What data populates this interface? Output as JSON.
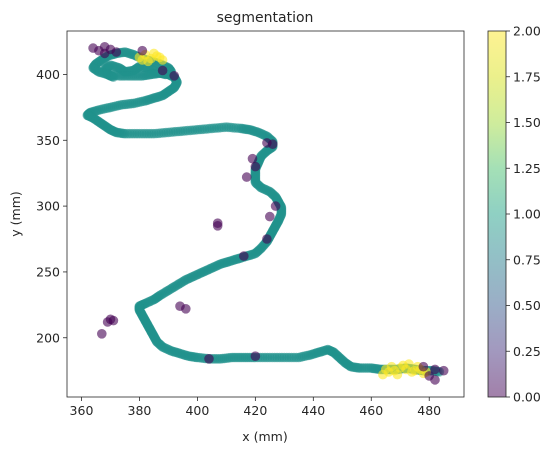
{
  "chart_data": {
    "type": "scatter",
    "title": "segmentation",
    "xlabel": "x (mm)",
    "ylabel": "y (mm)",
    "xlim": [
      355,
      492
    ],
    "ylim": [
      155,
      433
    ],
    "xticks": [
      360,
      380,
      400,
      420,
      440,
      460,
      480
    ],
    "yticks": [
      200,
      250,
      300,
      350,
      400
    ],
    "colorbar": {
      "range": [
        0.0,
        2.0
      ],
      "ticks": [
        "0.00",
        "0.25",
        "0.50",
        "0.75",
        "1.00",
        "1.25",
        "1.50",
        "1.75",
        "2.00"
      ],
      "colormap": "viridis",
      "alpha": 0.5
    },
    "series_colors": {
      "0": "#440154",
      "1": "#21918c",
      "2": "#fde725"
    },
    "path": [
      [
        371,
        398
      ],
      [
        369,
        400
      ],
      [
        368,
        404
      ],
      [
        370,
        407
      ],
      [
        373,
        405
      ],
      [
        375,
        402
      ],
      [
        378,
        403
      ],
      [
        380,
        406
      ],
      [
        383,
        405
      ],
      [
        386,
        402
      ],
      [
        389,
        400
      ],
      [
        391,
        402
      ],
      [
        390,
        405
      ],
      [
        387,
        408
      ],
      [
        384,
        410
      ],
      [
        381,
        412
      ],
      [
        378,
        415
      ],
      [
        375,
        417
      ],
      [
        372,
        416
      ],
      [
        369,
        414
      ],
      [
        367,
        411
      ],
      [
        365,
        408
      ],
      [
        364,
        405
      ],
      [
        366,
        402
      ],
      [
        369,
        400
      ],
      [
        373,
        399
      ],
      [
        377,
        399
      ],
      [
        381,
        399
      ],
      [
        384,
        400
      ],
      [
        387,
        401
      ],
      [
        390,
        400
      ],
      [
        392,
        398
      ],
      [
        393,
        394
      ],
      [
        392,
        390
      ],
      [
        390,
        387
      ],
      [
        388,
        384
      ],
      [
        385,
        382
      ],
      [
        382,
        380
      ],
      [
        378,
        378
      ],
      [
        374,
        377
      ],
      [
        370,
        375
      ],
      [
        366,
        373
      ],
      [
        363,
        371
      ],
      [
        362,
        369
      ],
      [
        364,
        367
      ],
      [
        366,
        364
      ],
      [
        368,
        361
      ],
      [
        370,
        358
      ],
      [
        372,
        356
      ],
      [
        375,
        355
      ],
      [
        380,
        355
      ],
      [
        385,
        355
      ],
      [
        390,
        356
      ],
      [
        395,
        357
      ],
      [
        400,
        358
      ],
      [
        405,
        359
      ],
      [
        410,
        360
      ],
      [
        415,
        359
      ],
      [
        418,
        358
      ],
      [
        421,
        356
      ],
      [
        424,
        353
      ],
      [
        426,
        349
      ],
      [
        426,
        345
      ],
      [
        424,
        342
      ],
      [
        422,
        338
      ],
      [
        421,
        333
      ],
      [
        420,
        328
      ],
      [
        420,
        323
      ],
      [
        420,
        318
      ],
      [
        422,
        314
      ],
      [
        425,
        311
      ],
      [
        427,
        307
      ],
      [
        428,
        303
      ],
      [
        429,
        299
      ],
      [
        429,
        294
      ],
      [
        428,
        289
      ],
      [
        427,
        285
      ],
      [
        426,
        281
      ],
      [
        425,
        277
      ],
      [
        424,
        273
      ],
      [
        422,
        268
      ],
      [
        420,
        264
      ],
      [
        417,
        262
      ],
      [
        414,
        260
      ],
      [
        411,
        258
      ],
      [
        408,
        256
      ],
      [
        405,
        253
      ],
      [
        402,
        250
      ],
      [
        399,
        247
      ],
      [
        396,
        244
      ],
      [
        393,
        240
      ],
      [
        390,
        236
      ],
      [
        387,
        232
      ],
      [
        385,
        229
      ],
      [
        382,
        226
      ],
      [
        380,
        224
      ],
      [
        380,
        221
      ],
      [
        381,
        217
      ],
      [
        382,
        213
      ],
      [
        383,
        209
      ],
      [
        384,
        205
      ],
      [
        385,
        201
      ],
      [
        386,
        197
      ],
      [
        388,
        193
      ],
      [
        391,
        190
      ],
      [
        394,
        188
      ],
      [
        397,
        186
      ],
      [
        400,
        185
      ],
      [
        404,
        184
      ],
      [
        408,
        184
      ],
      [
        412,
        185
      ],
      [
        416,
        185
      ],
      [
        420,
        185
      ],
      [
        425,
        185
      ],
      [
        430,
        185
      ],
      [
        435,
        185
      ],
      [
        439,
        187
      ],
      [
        442,
        189
      ],
      [
        445,
        191
      ],
      [
        447,
        189
      ],
      [
        449,
        185
      ],
      [
        451,
        181
      ],
      [
        453,
        178
      ],
      [
        456,
        177
      ],
      [
        460,
        177
      ],
      [
        463,
        176
      ],
      [
        466,
        176
      ],
      [
        469,
        176
      ],
      [
        472,
        177
      ],
      [
        475,
        176
      ],
      [
        478,
        175
      ],
      [
        481,
        175
      ],
      [
        484,
        174
      ]
    ],
    "segments": [
      {
        "label": 2,
        "points": [
          [
            380,
            413
          ],
          [
            382,
            415
          ],
          [
            384,
            412
          ],
          [
            386,
            414
          ],
          [
            388,
            411
          ],
          [
            383,
            410
          ],
          [
            385,
            416
          ],
          [
            381,
            411
          ],
          [
            387,
            413
          ],
          [
            464,
            172
          ],
          [
            466,
            174
          ],
          [
            468,
            175
          ],
          [
            470,
            177
          ],
          [
            472,
            176
          ],
          [
            474,
            174
          ],
          [
            476,
            178
          ],
          [
            478,
            173
          ],
          [
            471,
            179
          ],
          [
            469,
            172
          ],
          [
            473,
            180
          ],
          [
            475,
            175
          ],
          [
            467,
            178
          ],
          [
            477,
            176
          ],
          [
            465,
            176
          ],
          [
            479,
            174
          ]
        ]
      },
      {
        "label": 0,
        "points": [
          [
            364,
            420
          ],
          [
            366,
            418
          ],
          [
            368,
            416
          ],
          [
            370,
            419
          ],
          [
            372,
            417
          ],
          [
            368,
            421
          ],
          [
            381,
            418
          ],
          [
            388,
            403
          ],
          [
            392,
            399
          ],
          [
            407,
            287
          ],
          [
            407,
            285
          ],
          [
            424,
            348
          ],
          [
            426,
            347
          ],
          [
            419,
            336
          ],
          [
            420,
            330
          ],
          [
            417,
            322
          ],
          [
            427,
            300
          ],
          [
            425,
            292
          ],
          [
            424,
            275
          ],
          [
            416,
            262
          ],
          [
            394,
            224
          ],
          [
            396,
            222
          ],
          [
            404,
            184
          ],
          [
            420,
            186
          ],
          [
            370,
            214
          ],
          [
            369,
            212
          ],
          [
            371,
            213
          ],
          [
            367,
            203
          ],
          [
            482,
            168
          ],
          [
            480,
            171
          ],
          [
            478,
            178
          ],
          [
            482,
            176
          ],
          [
            485,
            175
          ]
        ]
      }
    ]
  }
}
